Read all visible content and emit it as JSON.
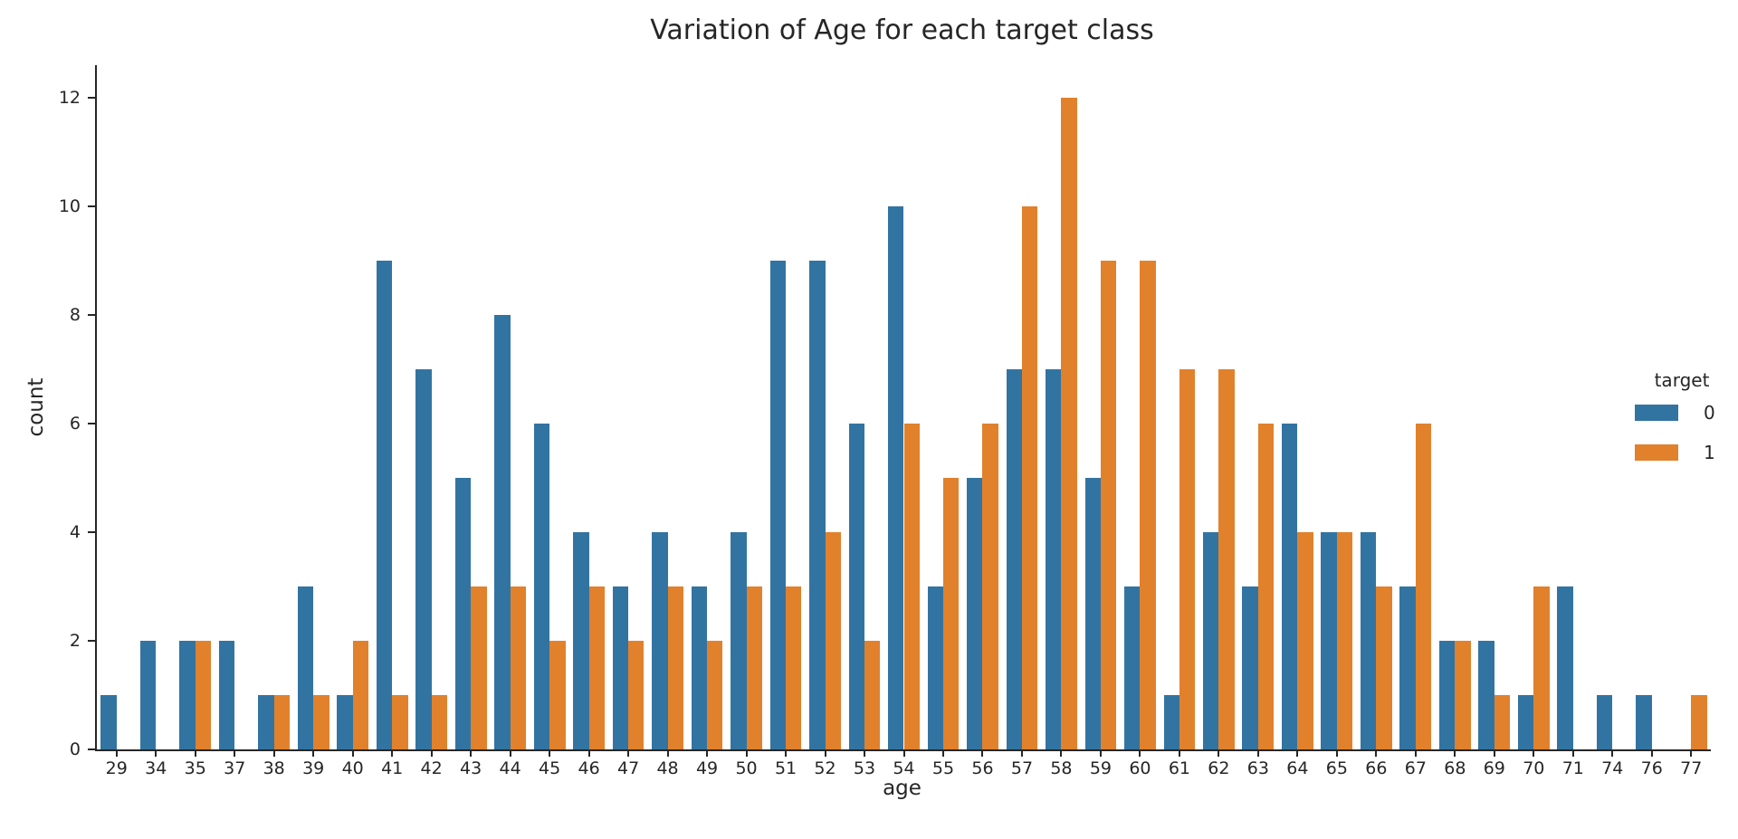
{
  "chart_data": {
    "type": "bar",
    "title": "Variation of Age for each target class",
    "xlabel": "age",
    "ylabel": "count",
    "legend_title": "target",
    "legend_position": "right",
    "grid": false,
    "categories": [
      "29",
      "34",
      "35",
      "37",
      "38",
      "39",
      "40",
      "41",
      "42",
      "43",
      "44",
      "45",
      "46",
      "47",
      "48",
      "49",
      "50",
      "51",
      "52",
      "53",
      "54",
      "55",
      "56",
      "57",
      "58",
      "59",
      "60",
      "61",
      "62",
      "63",
      "64",
      "65",
      "66",
      "67",
      "68",
      "69",
      "70",
      "71",
      "74",
      "76",
      "77"
    ],
    "series": [
      {
        "name": "0",
        "color": "#3274a1",
        "values": [
          1,
          2,
          2,
          2,
          1,
          3,
          1,
          9,
          7,
          5,
          8,
          6,
          4,
          3,
          4,
          3,
          4,
          9,
          9,
          6,
          10,
          3,
          5,
          7,
          7,
          5,
          3,
          1,
          4,
          3,
          6,
          4,
          4,
          3,
          2,
          2,
          1,
          3,
          1,
          1,
          0
        ]
      },
      {
        "name": "1",
        "color": "#e1812c",
        "values": [
          0,
          0,
          2,
          0,
          1,
          1,
          2,
          1,
          1,
          3,
          3,
          2,
          3,
          2,
          3,
          2,
          3,
          3,
          4,
          2,
          6,
          5,
          6,
          10,
          12,
          9,
          9,
          7,
          7,
          6,
          4,
          4,
          3,
          6,
          2,
          1,
          3,
          0,
          0,
          0,
          1
        ]
      }
    ],
    "yticks": [
      0,
      2,
      4,
      6,
      8,
      10,
      12
    ],
    "ylim": [
      0,
      12.6
    ]
  },
  "colors": {
    "target0": "#3274a1",
    "target1": "#e1812c",
    "text": "#262626",
    "background": "#ffffff"
  }
}
